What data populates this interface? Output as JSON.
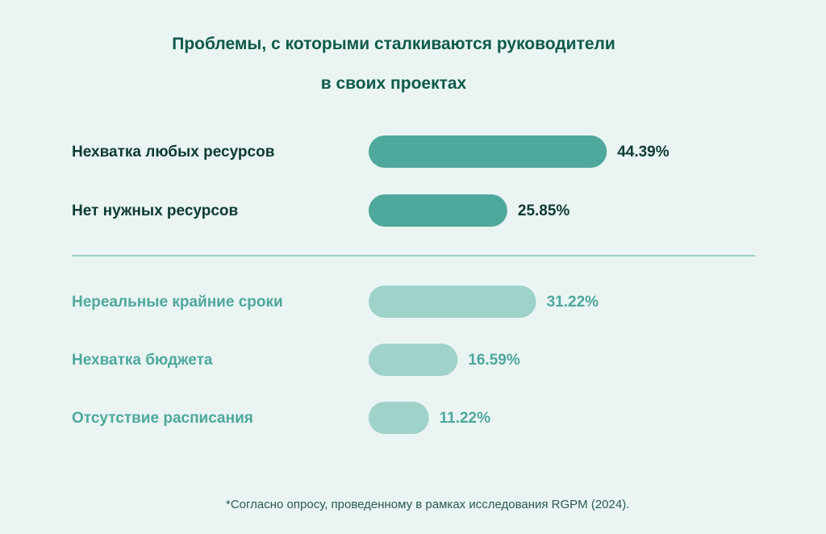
{
  "chart_data": {
    "type": "bar",
    "orientation": "horizontal",
    "title": "Проблемы, с которыми сталкиваются руководители в своих проектах",
    "title_lines": [
      "Проблемы, с которыми сталкиваются руководители",
      "в своих проектах"
    ],
    "groups": [
      {
        "categories": [
          "Нехватка любых ресурсов",
          "Нет нужных ресурсов"
        ],
        "values": [
          44.39,
          25.85
        ],
        "value_labels": [
          "44.39%",
          "25.85%"
        ],
        "bar_color": "#4ea89b",
        "label_color": "#0d3b33",
        "value_color": "#0d3b33"
      },
      {
        "categories": [
          "Нереальные крайние сроки",
          "Нехватка бюджета",
          "Отсутствие расписания"
        ],
        "values": [
          31.22,
          16.59,
          11.22
        ],
        "value_labels": [
          "31.22%",
          "16.59%",
          "11.22%"
        ],
        "bar_color": "#9fd2c9",
        "label_color": "#4ea89b",
        "value_color": "#4ea89b"
      }
    ],
    "unit": "%",
    "grid": false,
    "legend": "none",
    "separator_color": "#4ea89b"
  },
  "footnote": "*Согласно опросу, проведенному в рамках исследования RGPM (2024)."
}
